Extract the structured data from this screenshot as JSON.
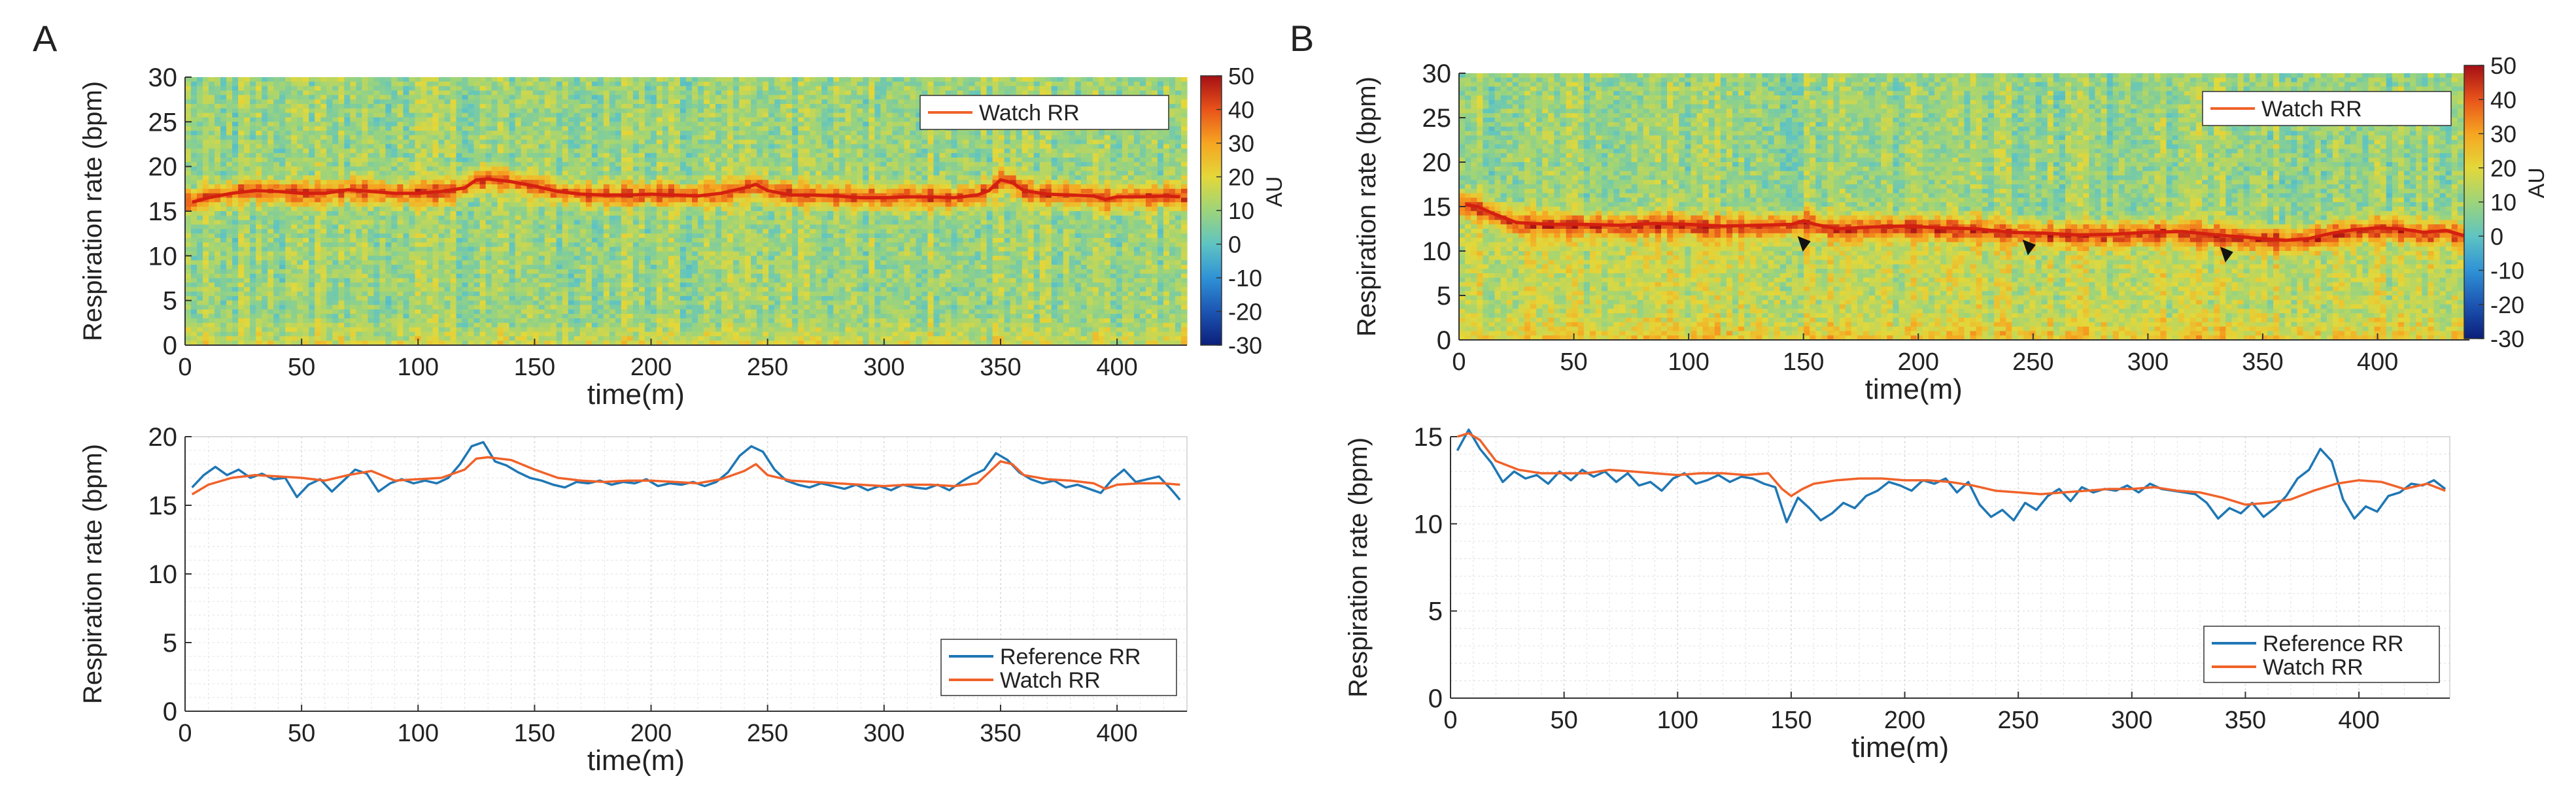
{
  "panel_labels": [
    "A",
    "B"
  ],
  "colorbar": {
    "label": "AU",
    "range": [
      -30,
      50
    ],
    "ticks": [
      50,
      40,
      30,
      20,
      10,
      0,
      -10,
      -20,
      -30
    ],
    "colormap": [
      "#0b1f7a",
      "#1c55b3",
      "#2f92d6",
      "#5fc4c2",
      "#9dd47a",
      "#e3d83a",
      "#f6a521",
      "#e8531a",
      "#a50f15"
    ]
  },
  "colors": {
    "reference": "#1f77b4",
    "watch": "#f0622a",
    "watch_heatmap_line": "#d42010",
    "grid": "#d9d9d9"
  },
  "chart_data": [
    {
      "id": "A-spectrogram",
      "type": "heatmap",
      "xlabel": "time(m)",
      "ylabel": "Respiration rate (bpm)",
      "xlim": [
        0,
        430
      ],
      "ylim": [
        0,
        30
      ],
      "xticks": [
        0,
        50,
        100,
        150,
        200,
        250,
        300,
        350,
        400
      ],
      "yticks": [
        0,
        5,
        10,
        15,
        20,
        25,
        30
      ],
      "legend": {
        "placement": "top-right",
        "entries": [
          "Watch RR"
        ]
      },
      "series": [
        {
          "name": "Watch RR",
          "x": [
            3,
            10,
            20,
            30,
            40,
            50,
            60,
            70,
            80,
            90,
            100,
            110,
            120,
            125,
            130,
            140,
            150,
            160,
            170,
            180,
            190,
            200,
            210,
            220,
            230,
            240,
            245,
            250,
            260,
            270,
            280,
            290,
            300,
            310,
            320,
            330,
            340,
            345,
            350,
            355,
            360,
            370,
            380,
            390,
            395,
            400,
            410,
            420,
            427
          ],
          "y": [
            16,
            16.5,
            17,
            17.3,
            17.2,
            17,
            17,
            17.4,
            17.2,
            17,
            17,
            17.2,
            17.6,
            18.5,
            18.6,
            18.3,
            17.8,
            17.2,
            16.9,
            16.8,
            16.8,
            16.9,
            16.8,
            16.7,
            17,
            17.6,
            18,
            17.3,
            16.8,
            16.8,
            16.7,
            16.5,
            16.5,
            16.6,
            16.6,
            16.5,
            16.8,
            17.3,
            18.5,
            18.2,
            17.3,
            16.9,
            16.8,
            16.7,
            16.3,
            16.6,
            16.6,
            16.7,
            16.6
          ]
        }
      ]
    },
    {
      "id": "A-comparison",
      "type": "line",
      "xlabel": "time(m)",
      "ylabel": "Respiration rate (bpm)",
      "xlim": [
        0,
        430
      ],
      "ylim": [
        0,
        20
      ],
      "xticks": [
        0,
        50,
        100,
        150,
        200,
        250,
        300,
        350,
        400
      ],
      "yticks": [
        0,
        5,
        10,
        15,
        20
      ],
      "grid": true,
      "legend": {
        "placement": "bottom-right",
        "entries": [
          "Reference RR",
          "Watch RR"
        ]
      },
      "series": [
        {
          "name": "Reference RR",
          "x": [
            3,
            8,
            13,
            18,
            23,
            28,
            33,
            38,
            43,
            48,
            53,
            58,
            63,
            68,
            73,
            78,
            83,
            88,
            93,
            98,
            103,
            108,
            113,
            118,
            123,
            128,
            133,
            138,
            143,
            148,
            153,
            158,
            163,
            168,
            173,
            178,
            183,
            188,
            193,
            198,
            203,
            208,
            213,
            218,
            223,
            228,
            233,
            238,
            243,
            248,
            253,
            258,
            263,
            268,
            273,
            278,
            283,
            288,
            293,
            298,
            303,
            308,
            313,
            318,
            323,
            328,
            333,
            338,
            343,
            348,
            353,
            358,
            363,
            368,
            373,
            378,
            383,
            388,
            393,
            398,
            403,
            408,
            413,
            418,
            423,
            427
          ],
          "y": [
            16.3,
            17.2,
            17.8,
            17.2,
            17.6,
            17.0,
            17.3,
            16.9,
            17.0,
            15.6,
            16.5,
            16.9,
            16.0,
            16.8,
            17.6,
            17.3,
            16.0,
            16.6,
            16.9,
            16.6,
            16.8,
            16.6,
            17.0,
            18.0,
            19.3,
            19.6,
            18.2,
            17.9,
            17.4,
            17.0,
            16.8,
            16.5,
            16.3,
            16.7,
            16.6,
            16.8,
            16.5,
            16.7,
            16.6,
            16.9,
            16.4,
            16.6,
            16.5,
            16.7,
            16.4,
            16.7,
            17.4,
            18.6,
            19.3,
            18.9,
            17.6,
            16.8,
            16.5,
            16.3,
            16.6,
            16.4,
            16.2,
            16.5,
            16.1,
            16.4,
            16.1,
            16.5,
            16.3,
            16.2,
            16.5,
            16.1,
            16.7,
            17.2,
            17.6,
            18.8,
            18.3,
            17.4,
            16.9,
            16.6,
            16.8,
            16.3,
            16.5,
            16.2,
            15.9,
            16.9,
            17.6,
            16.7,
            16.9,
            17.1,
            16.2,
            15.4
          ]
        },
        {
          "name": "Watch RR",
          "x": [
            3,
            10,
            20,
            30,
            40,
            50,
            60,
            70,
            80,
            90,
            100,
            110,
            120,
            125,
            130,
            140,
            150,
            160,
            170,
            180,
            190,
            200,
            210,
            220,
            230,
            240,
            245,
            250,
            260,
            270,
            280,
            290,
            300,
            310,
            320,
            330,
            340,
            345,
            350,
            355,
            360,
            370,
            380,
            390,
            395,
            400,
            410,
            420,
            427
          ],
          "y": [
            15.8,
            16.5,
            17.0,
            17.2,
            17.1,
            17.0,
            16.8,
            17.2,
            17.5,
            16.8,
            16.9,
            17.0,
            17.6,
            18.4,
            18.5,
            18.3,
            17.6,
            17.0,
            16.8,
            16.7,
            16.8,
            16.8,
            16.7,
            16.6,
            16.9,
            17.5,
            18.0,
            17.2,
            16.8,
            16.7,
            16.6,
            16.5,
            16.4,
            16.5,
            16.5,
            16.4,
            16.6,
            17.4,
            18.2,
            18.0,
            17.2,
            16.9,
            16.8,
            16.6,
            16.2,
            16.5,
            16.6,
            16.6,
            16.5
          ]
        }
      ]
    },
    {
      "id": "B-spectrogram",
      "type": "heatmap",
      "xlabel": "time(m)",
      "ylabel": "Respiration rate (bpm)",
      "xlim": [
        0,
        440
      ],
      "ylim": [
        0,
        30
      ],
      "xticks": [
        0,
        50,
        100,
        150,
        200,
        250,
        300,
        350,
        400
      ],
      "yticks": [
        0,
        5,
        10,
        15,
        20,
        25,
        30
      ],
      "legend": {
        "placement": "top-right",
        "entries": [
          "Watch RR"
        ]
      },
      "annotations": [
        {
          "type": "arrowhead",
          "x": 150,
          "y": 10.8
        },
        {
          "type": "arrowhead",
          "x": 248,
          "y": 10.4
        },
        {
          "type": "arrowhead",
          "x": 334,
          "y": 9.6
        }
      ],
      "series": [
        {
          "name": "Watch RR",
          "x": [
            3,
            8,
            15,
            25,
            40,
            55,
            70,
            85,
            100,
            115,
            130,
            145,
            150,
            155,
            165,
            180,
            195,
            210,
            225,
            240,
            255,
            270,
            285,
            300,
            315,
            330,
            345,
            360,
            370,
            380,
            390,
            400,
            410,
            420,
            430,
            438
          ],
          "y": [
            15.2,
            15.0,
            14.2,
            13.2,
            13.0,
            13.0,
            12.9,
            13.1,
            13.0,
            12.8,
            12.9,
            13.0,
            13.4,
            13.0,
            12.5,
            12.7,
            12.8,
            12.6,
            12.5,
            12.1,
            12.0,
            11.8,
            11.9,
            12.1,
            12.2,
            11.8,
            11.5,
            11.2,
            11.4,
            12.0,
            12.4,
            12.6,
            12.5,
            12.1,
            12.3,
            11.7
          ]
        }
      ]
    },
    {
      "id": "B-comparison",
      "type": "line",
      "xlabel": "time(m)",
      "ylabel": "Respiration rate (bpm)",
      "xlim": [
        0,
        440
      ],
      "ylim": [
        0,
        15
      ],
      "xticks": [
        0,
        50,
        100,
        150,
        200,
        250,
        300,
        350,
        400
      ],
      "yticks": [
        0,
        5,
        10,
        15
      ],
      "grid": true,
      "legend": {
        "placement": "bottom-right",
        "entries": [
          "Reference RR",
          "Watch RR"
        ]
      },
      "series": [
        {
          "name": "Reference RR",
          "x": [
            3,
            8,
            13,
            18,
            23,
            28,
            33,
            38,
            43,
            48,
            53,
            58,
            63,
            68,
            73,
            78,
            83,
            88,
            93,
            98,
            103,
            108,
            113,
            118,
            123,
            128,
            133,
            138,
            143,
            148,
            153,
            158,
            163,
            168,
            173,
            178,
            183,
            188,
            193,
            198,
            203,
            208,
            213,
            218,
            223,
            228,
            233,
            238,
            243,
            248,
            253,
            258,
            263,
            268,
            273,
            278,
            283,
            288,
            293,
            298,
            303,
            308,
            313,
            318,
            323,
            328,
            333,
            338,
            343,
            348,
            353,
            358,
            363,
            368,
            373,
            378,
            383,
            388,
            393,
            398,
            403,
            408,
            413,
            418,
            423,
            428,
            433,
            438
          ],
          "y": [
            14.2,
            15.4,
            14.3,
            13.5,
            12.4,
            13.0,
            12.6,
            12.8,
            12.3,
            13.0,
            12.5,
            13.1,
            12.7,
            13.0,
            12.4,
            12.9,
            12.2,
            12.4,
            11.9,
            12.6,
            12.9,
            12.3,
            12.5,
            12.8,
            12.4,
            12.7,
            12.6,
            12.3,
            12.1,
            10.1,
            11.5,
            10.9,
            10.2,
            10.6,
            11.2,
            10.9,
            11.6,
            11.9,
            12.4,
            12.2,
            11.9,
            12.5,
            12.3,
            12.6,
            11.8,
            12.4,
            11.1,
            10.4,
            10.8,
            10.2,
            11.2,
            10.8,
            11.6,
            12.0,
            11.3,
            12.1,
            11.8,
            12.0,
            11.9,
            12.2,
            11.8,
            12.3,
            12.0,
            11.9,
            11.8,
            11.7,
            11.2,
            10.3,
            10.9,
            10.6,
            11.2,
            10.4,
            10.9,
            11.6,
            12.6,
            13.1,
            14.3,
            13.6,
            11.4,
            10.3,
            11.0,
            10.7,
            11.6,
            11.8,
            12.3,
            12.2,
            12.5,
            12.0
          ]
        },
        {
          "name": "Watch RR",
          "x": [
            3,
            8,
            13,
            20,
            30,
            40,
            50,
            60,
            70,
            80,
            90,
            100,
            110,
            120,
            130,
            140,
            146,
            150,
            155,
            160,
            170,
            180,
            190,
            200,
            210,
            220,
            230,
            240,
            250,
            260,
            270,
            280,
            290,
            300,
            310,
            320,
            330,
            340,
            350,
            360,
            370,
            380,
            390,
            400,
            410,
            420,
            430,
            438
          ],
          "y": [
            15.0,
            15.2,
            14.8,
            13.6,
            13.1,
            12.9,
            12.9,
            12.9,
            13.1,
            13.0,
            12.9,
            12.8,
            12.9,
            12.9,
            12.8,
            12.9,
            12.0,
            11.6,
            12.0,
            12.3,
            12.5,
            12.6,
            12.6,
            12.5,
            12.5,
            12.4,
            12.2,
            11.9,
            11.8,
            11.7,
            11.8,
            11.9,
            12.0,
            12.0,
            12.1,
            11.9,
            11.8,
            11.5,
            11.1,
            11.2,
            11.4,
            11.9,
            12.3,
            12.5,
            12.4,
            12.0,
            12.3,
            11.9
          ]
        }
      ]
    }
  ]
}
